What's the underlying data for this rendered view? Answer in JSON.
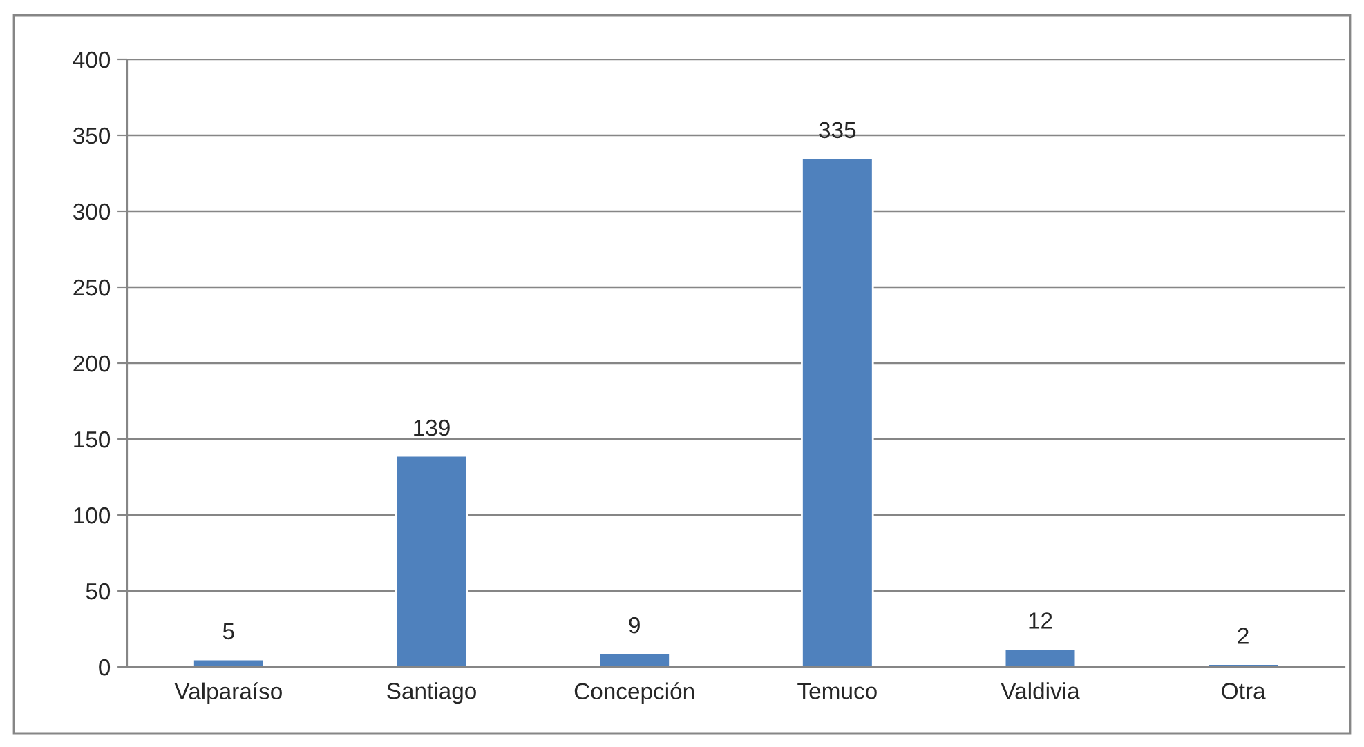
{
  "chart_data": {
    "type": "bar",
    "categories": [
      "Valparaíso",
      "Santiago",
      "Concepción",
      "Temuco",
      "Valdivia",
      "Otra"
    ],
    "values": [
      5,
      139,
      9,
      335,
      12,
      2
    ],
    "color": "#4f81bd",
    "ylim": [
      0,
      400
    ],
    "yticks": [
      0,
      50,
      100,
      150,
      200,
      250,
      300,
      350,
      400
    ],
    "grid": "y",
    "data_labels": true
  }
}
